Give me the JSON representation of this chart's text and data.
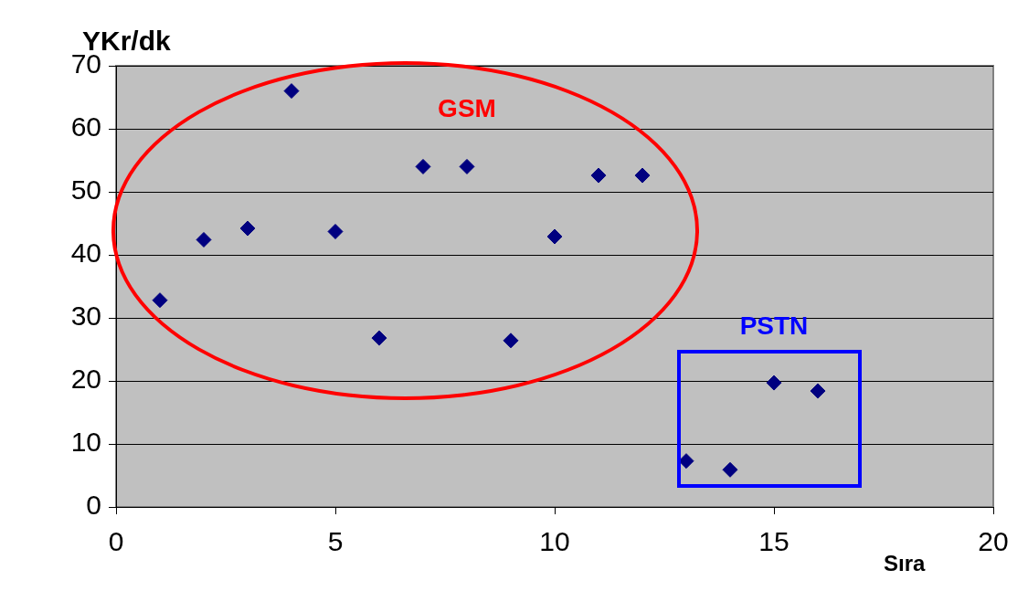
{
  "chart_data": {
    "type": "scatter",
    "xlabel": "Sıra",
    "ylabel": "YKr/dk",
    "x": [
      1,
      2,
      3,
      4,
      5,
      6,
      7,
      8,
      9,
      10,
      11,
      12,
      13,
      14,
      15,
      16
    ],
    "series": [
      {
        "color": "#000080",
        "values": [
          32.8,
          42.4,
          44.2,
          66.0,
          43.7,
          26.8,
          54.0,
          54.0,
          26.4,
          42.9,
          52.6,
          52.6,
          7.3,
          5.9,
          19.7,
          18.4
        ]
      }
    ],
    "xlim": [
      0,
      20
    ],
    "xticks": [
      0,
      5,
      10,
      15,
      20
    ],
    "ylim": [
      0,
      70
    ],
    "yticks": [
      0,
      10,
      20,
      30,
      40,
      50,
      60,
      70
    ],
    "grid": "y",
    "legend": false,
    "marker": "diamond",
    "annotations": [
      "GSM",
      "PSTN"
    ]
  }
}
